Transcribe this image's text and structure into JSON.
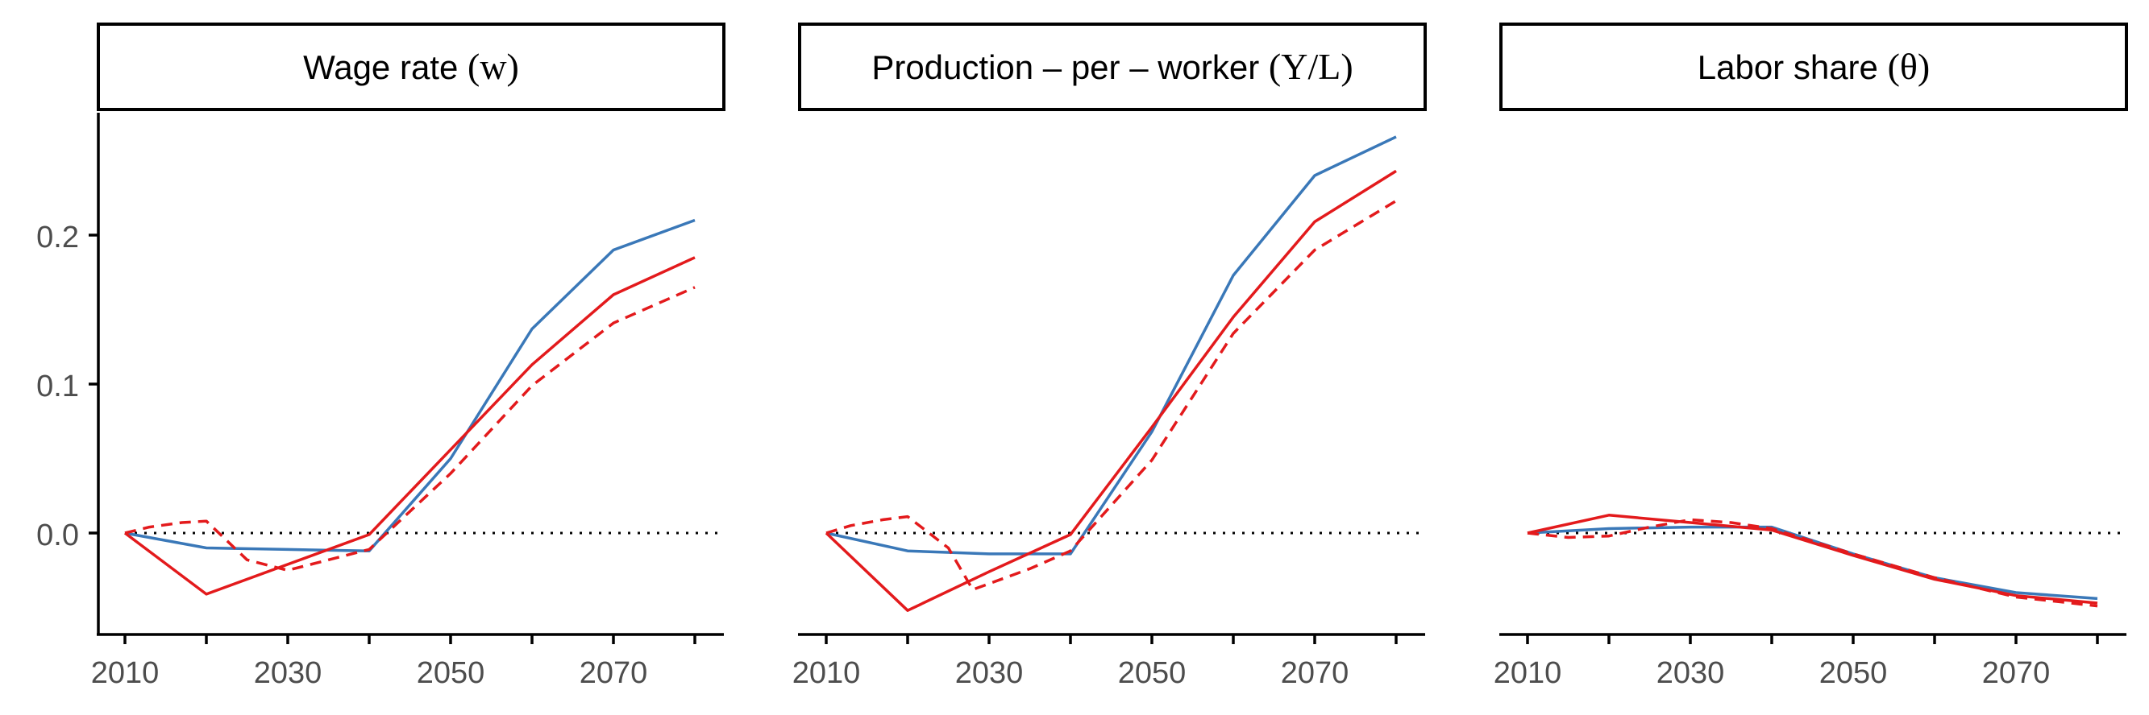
{
  "colors": {
    "blue": "#3a78b8",
    "red": "#e31a1c"
  },
  "y_axis": {
    "ticks": [
      0.0,
      0.1,
      0.2
    ],
    "tick_labels": [
      "0.0",
      "0.1",
      "0.2"
    ]
  },
  "x_axis": {
    "ticks": [
      2010,
      2030,
      2050,
      2070
    ],
    "tick_labels": [
      "2010",
      "2030",
      "2050",
      "2070"
    ]
  },
  "panels": [
    {
      "strip": {
        "main": "Wage rate",
        "sym": "(w)"
      }
    },
    {
      "strip": {
        "main": "Production – per – worker",
        "sym": "(Y/L)"
      }
    },
    {
      "strip": {
        "main": "Labor share",
        "sym": "(θ)"
      }
    }
  ],
  "chart_data": [
    {
      "type": "line",
      "xlim": [
        2010,
        2080
      ],
      "ylim": [
        -0.067,
        0.28
      ],
      "x": [
        2010,
        2020,
        2030,
        2040,
        2050,
        2060,
        2070,
        2080
      ],
      "series": [
        {
          "color": "blue",
          "style": "solid",
          "values": [
            0.0,
            -0.01,
            -0.011,
            -0.012,
            0.05,
            0.137,
            0.19,
            0.21
          ]
        },
        {
          "color": "red",
          "style": "solid",
          "values": [
            0.0,
            -0.041,
            -0.021,
            -0.001,
            0.056,
            0.113,
            0.16,
            0.185
          ]
        },
        {
          "color": "red",
          "style": "dashed",
          "x": [
            2010,
            2013,
            2017,
            2020,
            2025,
            2030,
            2035,
            2040,
            2050,
            2060,
            2070,
            2080
          ],
          "values": [
            0.0,
            0.004,
            0.007,
            0.008,
            -0.018,
            -0.025,
            -0.018,
            -0.011,
            0.04,
            0.099,
            0.141,
            0.165
          ]
        }
      ]
    },
    {
      "type": "line",
      "xlim": [
        2010,
        2080
      ],
      "ylim": [
        -0.067,
        0.28
      ],
      "x": [
        2010,
        2020,
        2030,
        2040,
        2050,
        2060,
        2070,
        2080
      ],
      "series": [
        {
          "color": "blue",
          "style": "solid",
          "values": [
            0.0,
            -0.012,
            -0.014,
            -0.014,
            0.068,
            0.173,
            0.24,
            0.266
          ]
        },
        {
          "color": "red",
          "style": "solid",
          "values": [
            0.0,
            -0.052,
            -0.026,
            -0.001,
            0.071,
            0.145,
            0.209,
            0.243
          ]
        },
        {
          "color": "red",
          "style": "dashed",
          "x": [
            2010,
            2013,
            2017,
            2020,
            2025,
            2028,
            2035,
            2040,
            2050,
            2060,
            2070,
            2080
          ],
          "values": [
            0.0,
            0.005,
            0.009,
            0.011,
            -0.01,
            -0.038,
            -0.024,
            -0.012,
            0.049,
            0.134,
            0.19,
            0.223
          ]
        }
      ]
    },
    {
      "type": "line",
      "xlim": [
        2010,
        2080
      ],
      "ylim": [
        -0.067,
        0.28
      ],
      "x": [
        2010,
        2020,
        2030,
        2040,
        2050,
        2060,
        2070,
        2080
      ],
      "series": [
        {
          "color": "blue",
          "style": "solid",
          "values": [
            0.0,
            0.003,
            0.004,
            0.004,
            -0.014,
            -0.03,
            -0.04,
            -0.044
          ]
        },
        {
          "color": "red",
          "style": "solid",
          "values": [
            0.0,
            0.012,
            0.007,
            0.002,
            -0.015,
            -0.031,
            -0.042,
            -0.047
          ]
        },
        {
          "color": "red",
          "style": "dashed",
          "x": [
            2010,
            2015,
            2020,
            2025,
            2030,
            2035,
            2040,
            2050,
            2060,
            2070,
            2080
          ],
          "values": [
            0.0,
            -0.003,
            -0.002,
            0.004,
            0.009,
            0.007,
            0.003,
            -0.014,
            -0.03,
            -0.043,
            -0.049
          ]
        }
      ]
    }
  ]
}
